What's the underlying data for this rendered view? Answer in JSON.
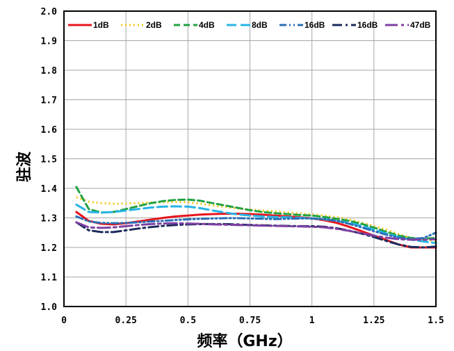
{
  "chart_data": {
    "type": "line",
    "xlabel": "频率（GHz）",
    "ylabel": "驻波",
    "xlim": [
      0,
      1.5
    ],
    "ylim": [
      1.0,
      2.0
    ],
    "x_ticks": [
      "0",
      "0.25",
      "0.5",
      "0.75",
      "1",
      "1.25",
      "1.5"
    ],
    "y_ticks": [
      "1.0",
      "1.1",
      "1.2",
      "1.3",
      "1.4",
      "1.5",
      "1.6",
      "1.7",
      "1.8",
      "1.9",
      "2.0"
    ],
    "grid": true,
    "legend_position": "top",
    "series": [
      {
        "name": "1dB",
        "color": "#e8141c",
        "dash": "solid",
        "x": [
          0.05,
          0.1,
          0.15,
          0.2,
          0.25,
          0.3,
          0.35,
          0.4,
          0.45,
          0.5,
          0.55,
          0.6,
          0.65,
          0.7,
          0.75,
          0.8,
          0.85,
          0.9,
          0.95,
          1.0,
          1.05,
          1.1,
          1.15,
          1.2,
          1.25,
          1.3,
          1.35,
          1.4,
          1.45,
          1.5
        ],
        "y": [
          1.32,
          1.29,
          1.28,
          1.278,
          1.282,
          1.288,
          1.294,
          1.3,
          1.305,
          1.308,
          1.311,
          1.313,
          1.314,
          1.314,
          1.313,
          1.311,
          1.308,
          1.305,
          1.302,
          1.298,
          1.292,
          1.283,
          1.27,
          1.255,
          1.24,
          1.225,
          1.21,
          1.2,
          1.2,
          1.2
        ]
      },
      {
        "name": "2dB",
        "color": "#f5c518",
        "dash": "dot",
        "x": [
          0.05,
          0.1,
          0.15,
          0.2,
          0.25,
          0.3,
          0.35,
          0.4,
          0.45,
          0.5,
          0.55,
          0.6,
          0.65,
          0.7,
          0.75,
          0.8,
          0.85,
          0.9,
          0.95,
          1.0,
          1.05,
          1.1,
          1.15,
          1.2,
          1.25,
          1.3,
          1.35,
          1.4,
          1.45,
          1.5
        ],
        "y": [
          1.37,
          1.355,
          1.35,
          1.348,
          1.349,
          1.35,
          1.352,
          1.353,
          1.354,
          1.353,
          1.348,
          1.342,
          1.337,
          1.332,
          1.328,
          1.325,
          1.322,
          1.318,
          1.315,
          1.312,
          1.308,
          1.302,
          1.295,
          1.285,
          1.272,
          1.26,
          1.245,
          1.232,
          1.225,
          1.222
        ]
      },
      {
        "name": "4dB",
        "color": "#21a141",
        "dash": "dash",
        "x": [
          0.05,
          0.1,
          0.15,
          0.2,
          0.25,
          0.3,
          0.35,
          0.4,
          0.45,
          0.5,
          0.55,
          0.6,
          0.65,
          0.7,
          0.75,
          0.8,
          0.85,
          0.9,
          0.95,
          1.0,
          1.05,
          1.1,
          1.15,
          1.2,
          1.25,
          1.3,
          1.35,
          1.4,
          1.45,
          1.5
        ],
        "y": [
          1.405,
          1.33,
          1.318,
          1.32,
          1.33,
          1.34,
          1.35,
          1.357,
          1.361,
          1.362,
          1.358,
          1.35,
          1.342,
          1.334,
          1.326,
          1.32,
          1.316,
          1.313,
          1.31,
          1.308,
          1.303,
          1.297,
          1.29,
          1.28,
          1.267,
          1.253,
          1.24,
          1.232,
          1.23,
          1.232
        ]
      },
      {
        "name": "8dB",
        "color": "#27b4e6",
        "dash": "longdash",
        "x": [
          0.05,
          0.1,
          0.15,
          0.2,
          0.25,
          0.3,
          0.35,
          0.4,
          0.45,
          0.5,
          0.55,
          0.6,
          0.65,
          0.7,
          0.75,
          0.8,
          0.85,
          0.9,
          0.95,
          1.0,
          1.05,
          1.1,
          1.15,
          1.2,
          1.25,
          1.3,
          1.35,
          1.4,
          1.45,
          1.5
        ],
        "y": [
          1.345,
          1.32,
          1.318,
          1.32,
          1.325,
          1.33,
          1.335,
          1.338,
          1.339,
          1.338,
          1.333,
          1.325,
          1.318,
          1.312,
          1.308,
          1.305,
          1.303,
          1.302,
          1.3,
          1.298,
          1.295,
          1.29,
          1.283,
          1.273,
          1.26,
          1.247,
          1.235,
          1.226,
          1.22,
          1.215
        ]
      },
      {
        "name": "16dB",
        "color": "#2b6fb6",
        "dash": "dashdotdot",
        "x": [
          0.05,
          0.1,
          0.15,
          0.2,
          0.25,
          0.3,
          0.35,
          0.4,
          0.45,
          0.5,
          0.55,
          0.6,
          0.65,
          0.7,
          0.75,
          0.8,
          0.85,
          0.9,
          0.95,
          1.0,
          1.05,
          1.1,
          1.15,
          1.2,
          1.25,
          1.3,
          1.35,
          1.4,
          1.45,
          1.5
        ],
        "y": [
          1.305,
          1.288,
          1.283,
          1.282,
          1.283,
          1.285,
          1.288,
          1.29,
          1.293,
          1.295,
          1.297,
          1.298,
          1.299,
          1.299,
          1.298,
          1.297,
          1.296,
          1.297,
          1.298,
          1.298,
          1.296,
          1.29,
          1.28,
          1.268,
          1.255,
          1.243,
          1.233,
          1.228,
          1.232,
          1.25
        ]
      },
      {
        "name": "16dB",
        "color": "#1c2a5c",
        "dash": "dashdot",
        "x": [
          0.05,
          0.1,
          0.15,
          0.2,
          0.25,
          0.3,
          0.35,
          0.4,
          0.45,
          0.5,
          0.55,
          0.6,
          0.65,
          0.7,
          0.75,
          0.8,
          0.85,
          0.9,
          0.95,
          1.0,
          1.05,
          1.1,
          1.15,
          1.2,
          1.25,
          1.3,
          1.35,
          1.4,
          1.45,
          1.5
        ],
        "y": [
          1.285,
          1.258,
          1.252,
          1.252,
          1.258,
          1.264,
          1.269,
          1.273,
          1.276,
          1.278,
          1.279,
          1.279,
          1.279,
          1.278,
          1.276,
          1.275,
          1.274,
          1.273,
          1.272,
          1.272,
          1.27,
          1.265,
          1.257,
          1.247,
          1.235,
          1.222,
          1.21,
          1.202,
          1.2,
          1.203
        ]
      },
      {
        "name": "47dB",
        "color": "#7e3fa3",
        "dash": "longdashdot",
        "x": [
          0.05,
          0.1,
          0.15,
          0.2,
          0.25,
          0.3,
          0.35,
          0.4,
          0.45,
          0.5,
          0.55,
          0.6,
          0.65,
          0.7,
          0.75,
          0.8,
          0.85,
          0.9,
          0.95,
          1.0,
          1.05,
          1.1,
          1.15,
          1.2,
          1.25,
          1.3,
          1.35,
          1.4,
          1.45,
          1.5
        ],
        "y": [
          1.285,
          1.268,
          1.266,
          1.268,
          1.272,
          1.276,
          1.279,
          1.281,
          1.282,
          1.281,
          1.28,
          1.278,
          1.277,
          1.276,
          1.275,
          1.274,
          1.273,
          1.272,
          1.271,
          1.27,
          1.268,
          1.263,
          1.256,
          1.248,
          1.24,
          1.233,
          1.228,
          1.226,
          1.226,
          1.228
        ]
      }
    ]
  }
}
